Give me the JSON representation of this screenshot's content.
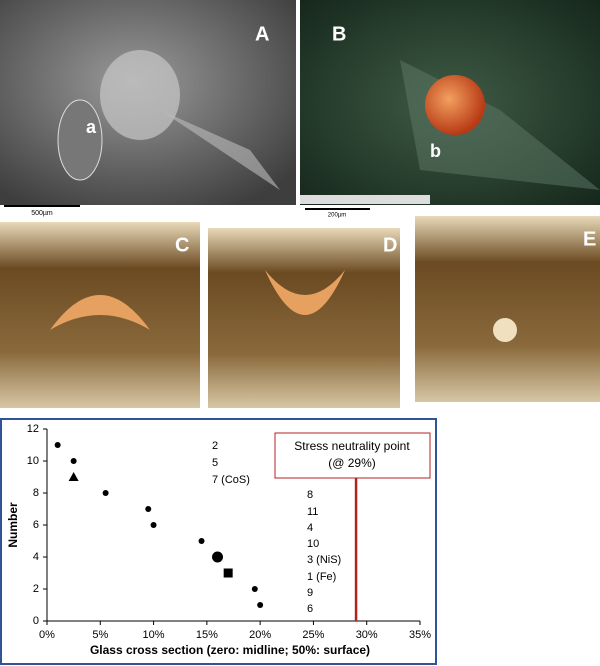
{
  "panels": {
    "A": "A",
    "a": "a",
    "B": "B",
    "b": "b",
    "C": "C",
    "D": "D",
    "E": "E",
    "scale_A": "500µm",
    "scale_B": "200µm"
  },
  "chart_data": {
    "type": "scatter",
    "xlabel": "Glass cross section (zero: midline; 50%: surface)",
    "ylabel": "Number",
    "x": [
      1,
      2.5,
      2.5,
      5.5,
      9.5,
      10,
      14.5,
      16,
      17,
      19.5,
      20
    ],
    "values": [
      11,
      10,
      9,
      8,
      7,
      6,
      5,
      4,
      3,
      2,
      1
    ],
    "markers": [
      "dot",
      "dot",
      "triangle",
      "dot",
      "dot",
      "dot",
      "dot",
      "disc",
      "square",
      "dot",
      "dot"
    ],
    "color": "#000000",
    "xlim": [
      0,
      35
    ],
    "xticks": [
      {
        "value": 0,
        "label": "0%"
      },
      {
        "value": 5,
        "label": "5%"
      },
      {
        "value": 10,
        "label": "10%"
      },
      {
        "value": 15,
        "label": "15%"
      },
      {
        "value": 20,
        "label": "20%"
      },
      {
        "value": 25,
        "label": "25%"
      },
      {
        "value": 30,
        "label": "30%"
      },
      {
        "value": 35,
        "label": "35%"
      }
    ],
    "ylim": [
      0,
      12
    ],
    "yticks": [
      0,
      2,
      4,
      6,
      8,
      10,
      12
    ],
    "annotations": [
      "2",
      "5",
      "7 (CoS)",
      "8",
      "11",
      "4",
      "10",
      "3 (NiS)",
      "1 (Fe)",
      "9",
      "6"
    ],
    "reference_line": {
      "x": 29,
      "color": "#b22222",
      "label": [
        "Stress neutrality point",
        "(@ 29%)"
      ]
    }
  }
}
